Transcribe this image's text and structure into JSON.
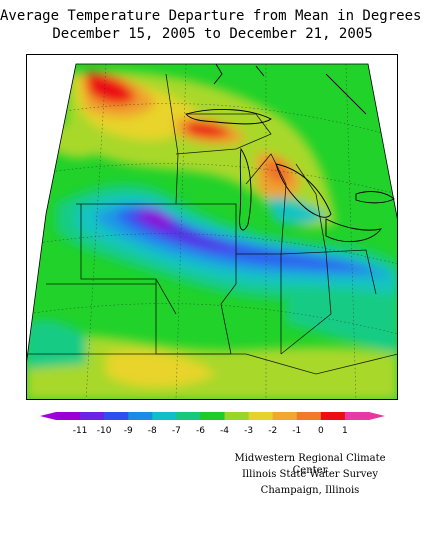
{
  "title": {
    "line1": "Average Temperature Departure from Mean in Degrees F",
    "line2": "December 15, 2005 to December 21, 2005"
  },
  "legend": {
    "labels": [
      "-11",
      "-10",
      "-9",
      "-8",
      "-7",
      "-6",
      "-4",
      "-3",
      "-2",
      "-1",
      "0",
      "1"
    ],
    "colors": [
      "#9a00d6",
      "#6a22e6",
      "#2f4ef0",
      "#1a8ce6",
      "#11bfc8",
      "#16c97a",
      "#1fcc2a",
      "#9ad62a",
      "#e6d22a",
      "#f0a830",
      "#f07a2a",
      "#ec0e14",
      "#e63aa6"
    ],
    "low_end_color": "#a000e0",
    "high_end_color": "#e8389f"
  },
  "credits": {
    "line1": "Midwestern Regional Climate Center",
    "line2": "Illinois State Water Survey",
    "line3": "Champaign, Illinois"
  },
  "map": {
    "region": "Midwest United States",
    "colors": {
      "purple": "#8c0ad8",
      "blue_violet": "#5530e6",
      "blue": "#2f5ef0",
      "light_blue": "#1f9ae6",
      "cyan": "#12c4c0",
      "teal_green": "#15cc84",
      "green": "#20d22a",
      "yellow_green": "#a8d82a",
      "yellow": "#e8d42a",
      "orange": "#f0a02e",
      "dark_orange": "#ee6e2a",
      "red": "#ec0e14"
    }
  }
}
